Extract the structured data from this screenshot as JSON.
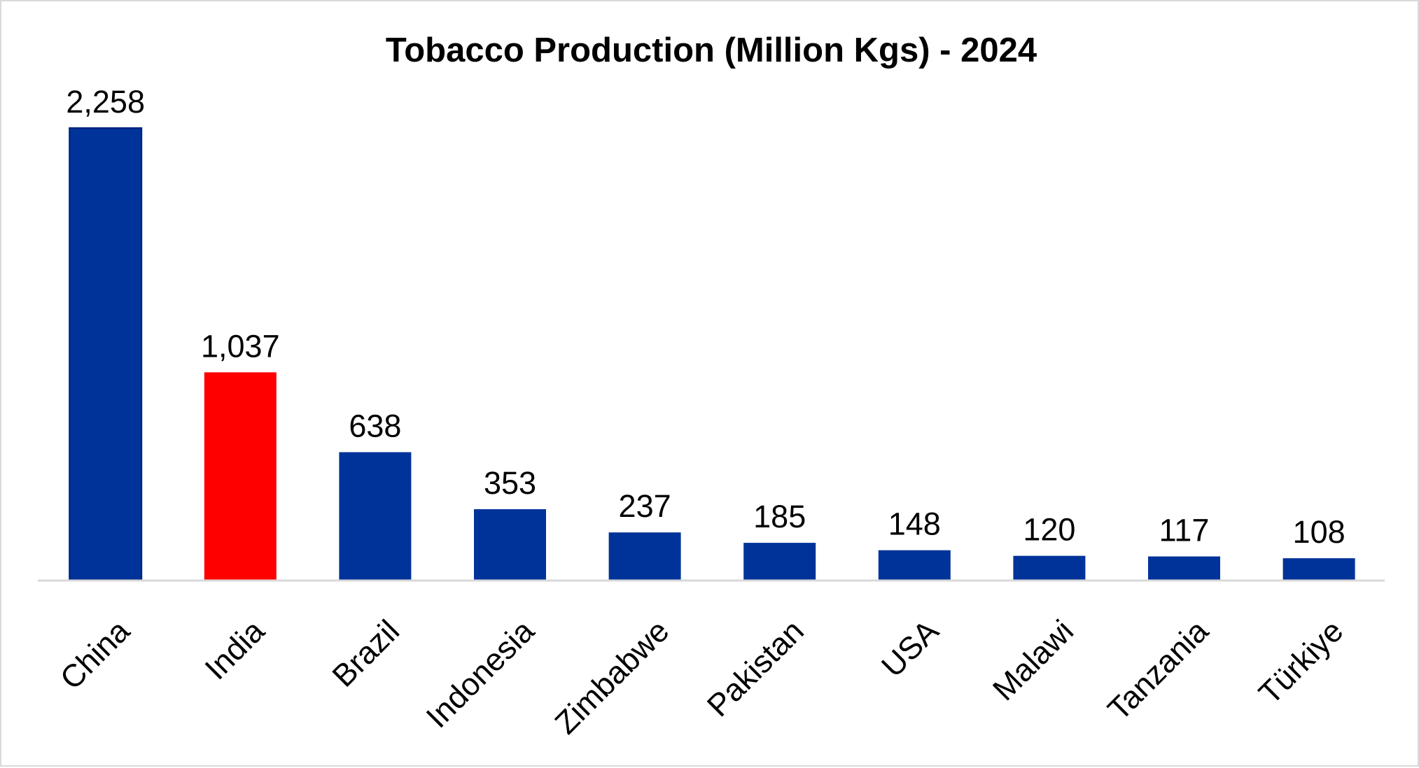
{
  "chart_data": {
    "type": "bar",
    "title": "Tobacco Production (Million Kgs) - 2024",
    "xlabel": "",
    "ylabel": "",
    "categories": [
      "China",
      "India",
      "Brazil",
      "Indonesia",
      "Zimbabwe",
      "Pakistan",
      "USA",
      "Malawi",
      "Tanzania",
      "Türkiye"
    ],
    "values": [
      2258,
      1037,
      638,
      353,
      237,
      185,
      148,
      120,
      117,
      108
    ],
    "data_labels": [
      "2,258",
      "1,037",
      "638",
      "353",
      "237",
      "185",
      "148",
      "120",
      "117",
      "108"
    ],
    "highlight_index": 1,
    "ylim": [
      0,
      2258
    ],
    "grid": false,
    "legend": "none",
    "colors": {
      "bar": "#003399",
      "highlight": "#FF0000",
      "axis": "#d9d9d9"
    }
  }
}
